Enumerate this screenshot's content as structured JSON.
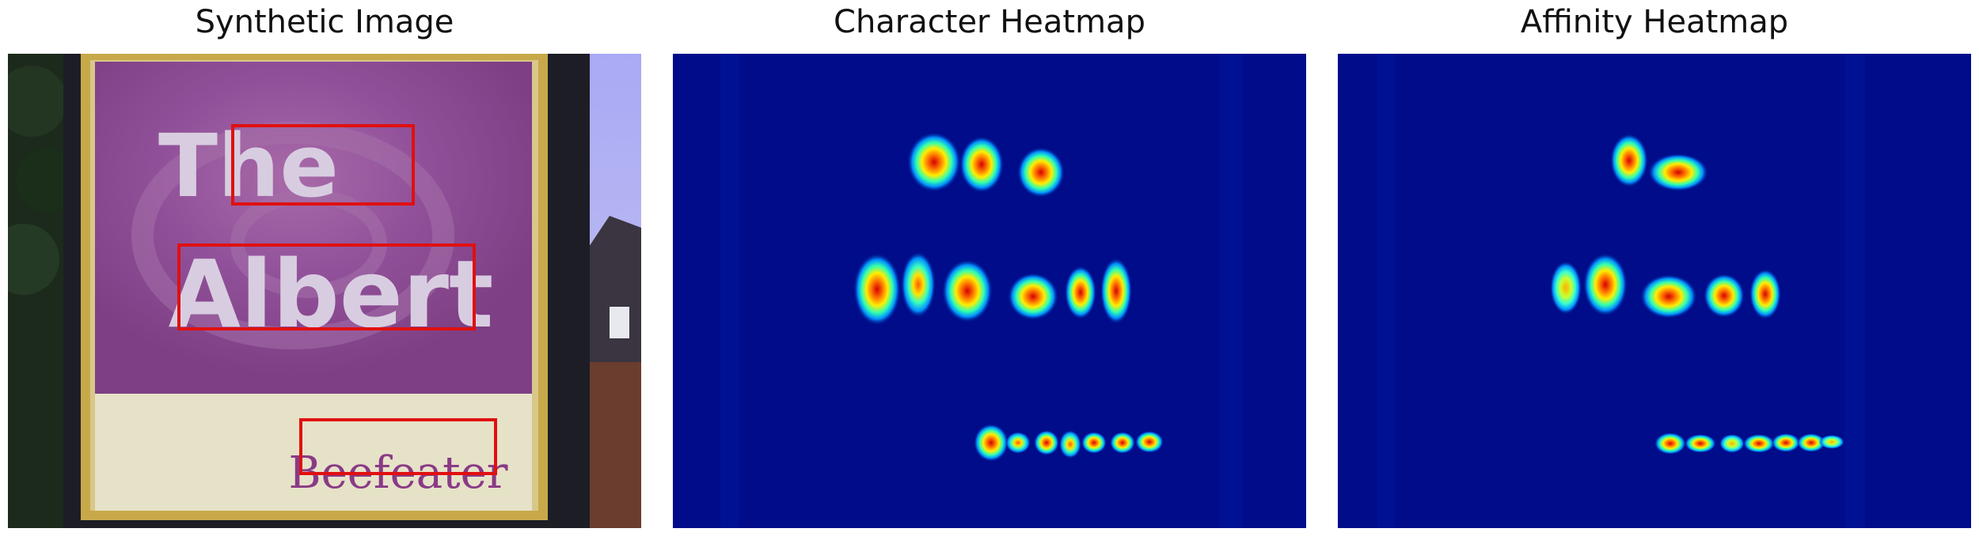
{
  "panels": {
    "synthetic": {
      "title": "Synthetic Image"
    },
    "character": {
      "title": "Character Heatmap"
    },
    "affinity": {
      "title": "Affinity Heatmap"
    }
  },
  "sign": {
    "words": [
      "The",
      "Albert",
      "Beefeater"
    ]
  },
  "colors": {
    "box": "#e01010",
    "sign_purple": "#8e4c8e",
    "heat_bg": "#000c8a"
  }
}
